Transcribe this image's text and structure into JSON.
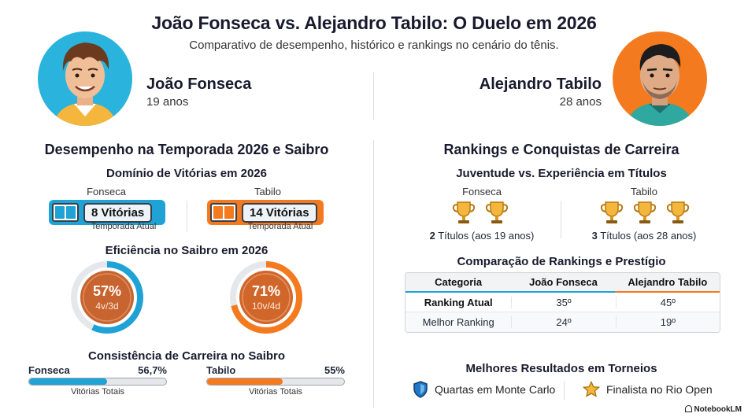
{
  "header": {
    "title": "João Fonseca vs. Alejandro Tabilo: O Duelo em 2026",
    "subtitle": "Comparativo de desempenho, histórico e rankings no cenário do tênis."
  },
  "players": {
    "left": {
      "name": "João Fonseca",
      "age": "19 anos"
    },
    "right": {
      "name": "Alejandro Tabilo",
      "age": "28 anos"
    }
  },
  "season": {
    "section_title": "Desempenho na Temporada 2026 e Saibro",
    "wins_title": "Domínio de Vitórias em 2026",
    "fonseca_label": "Fonseca",
    "tabilo_label": "Tabilo",
    "fonseca_wins": "8 Vitórias",
    "tabilo_wins": "14 Vitórias",
    "fonseca_caption": "Temporada Atual",
    "tabilo_caption": "Temporada Atual",
    "clay_title": "Eficiência no Saibro em 2026",
    "fonseca_pct": "57%",
    "fonseca_record": "4v/3d",
    "fonseca_pct_value": 57,
    "tabilo_pct": "71%",
    "tabilo_record": "10v/4d",
    "tabilo_pct_value": 71,
    "career_title": "Consistência de Carreira no Saibro",
    "career_fonseca_name": "Fonseca",
    "career_fonseca_value": "56,7%",
    "career_fonseca_fill": 56.7,
    "career_tabilo_name": "Tabilo",
    "career_tabilo_value": "55%",
    "career_tabilo_fill": 55,
    "career_caption_left": "Vitórias Totais",
    "career_caption_right": "Vitórias Totais"
  },
  "career": {
    "section_title": "Rankings e Conquistas de Carreira",
    "titles_title": "Juventude vs. Experiência em Títulos",
    "fonseca_label": "Fonseca",
    "tabilo_label": "Tabilo",
    "fonseca_titles_num": "2",
    "fonseca_titles_text": " Títulos (aos 19 anos)",
    "tabilo_titles_num": "3",
    "tabilo_titles_text": " Títulos (aos 28 anos)",
    "rank_title": "Comparação de Rankings e Prestígio",
    "table": {
      "headers": [
        "Categoria",
        "João Fonseca",
        "Alejandro Tabilo"
      ],
      "rows": [
        [
          "Ranking Atual",
          "35º",
          "45º"
        ],
        [
          "Melhor Ranking",
          "24º",
          "19º"
        ]
      ]
    },
    "results_title": "Melhores Resultados em Torneios",
    "result_left": "Quartas em Monte Carlo",
    "result_right": "Finalista no Rio Open"
  },
  "footer": {
    "logo": "NotebookLM"
  },
  "colors": {
    "blue": "#1fa3d6",
    "orange": "#f47a1f",
    "dark": "#1a1a2e"
  }
}
